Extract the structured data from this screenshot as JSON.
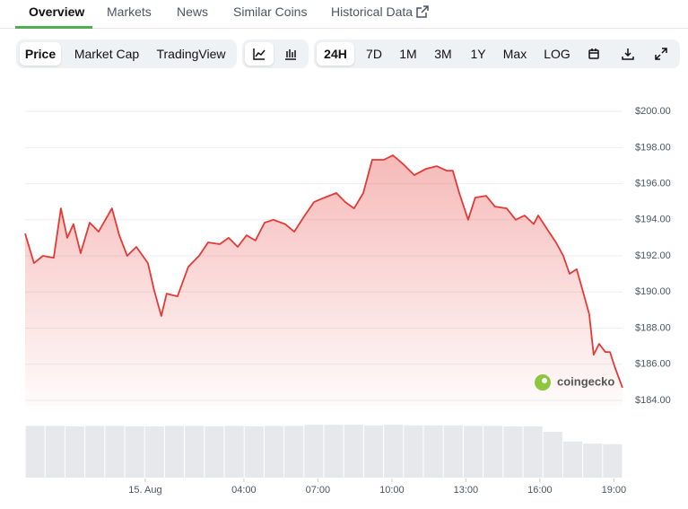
{
  "tabs": [
    "Overview",
    "Markets",
    "News",
    "Similar Coins",
    "Historical Data"
  ],
  "toolbar": {
    "chart_types": [
      "Price",
      "Market Cap",
      "TradingView"
    ],
    "ranges": [
      "24H",
      "7D",
      "1M",
      "3M",
      "1Y",
      "Max",
      "LOG"
    ]
  },
  "watermark": "coingecko",
  "chart_data": {
    "type": "area",
    "color": "#e53935",
    "grid": true,
    "x": [
      -4.87,
      -4.51,
      -4.15,
      -3.71,
      -3.42,
      -3.16,
      -2.91,
      -2.62,
      -2.25,
      -1.89,
      -1.35,
      -1.05,
      -0.73,
      -0.36,
      0.11,
      0.36,
      0.65,
      0.87,
      1.31,
      1.75,
      2.18,
      2.55,
      3.02,
      3.38,
      3.75,
      4.11,
      4.47,
      4.84,
      5.2,
      5.67,
      6.04,
      6.47,
      6.84,
      7.27,
      7.75,
      8.11,
      8.47,
      8.84,
      9.2,
      9.67,
      10.04,
      10.47,
      10.91,
      11.38,
      11.82,
      12.22,
      12.47,
      12.73,
      13.09,
      13.38,
      13.82,
      14.18,
      14.65,
      15.02,
      15.38,
      15.75,
      15.93,
      16.29,
      16.65,
      16.95,
      17.2,
      17.49,
      17.75,
      18.0,
      18.18,
      18.4,
      18.65,
      18.84,
      19.05,
      19.35
    ],
    "values": [
      193.24,
      191.6,
      192.0,
      191.9,
      194.63,
      193.0,
      193.76,
      192.15,
      193.84,
      193.34,
      194.63,
      193.14,
      192.0,
      192.5,
      191.6,
      190.11,
      188.67,
      189.91,
      189.76,
      191.4,
      192.0,
      192.75,
      192.65,
      193.0,
      192.5,
      193.14,
      192.85,
      193.84,
      194.0,
      193.76,
      193.34,
      194.24,
      194.98,
      195.23,
      195.48,
      194.98,
      194.63,
      195.48,
      197.32,
      197.32,
      197.57,
      197.07,
      196.47,
      196.82,
      196.97,
      196.72,
      196.72,
      195.48,
      194.0,
      195.23,
      195.33,
      194.73,
      194.63,
      194.0,
      194.24,
      193.76,
      194.24,
      193.49,
      192.75,
      192.0,
      191.01,
      191.26,
      190.01,
      188.77,
      186.53,
      187.13,
      186.68,
      186.68,
      185.79,
      184.7
    ],
    "xlim": [
      -4.87,
      19.35
    ],
    "xticks": [
      {
        "value": 0,
        "label": "15. Aug"
      },
      {
        "value": 4,
        "label": "04:00"
      },
      {
        "value": 7,
        "label": "07:00"
      },
      {
        "value": 10,
        "label": "10:00"
      },
      {
        "value": 13,
        "label": "13:00"
      },
      {
        "value": 16,
        "label": "16:00"
      },
      {
        "value": 19,
        "label": "19:00"
      }
    ],
    "ylim": [
      183.7,
      201
    ],
    "yticks": [
      {
        "value": 184,
        "label": "$184.00"
      },
      {
        "value": 186,
        "label": "$186.00"
      },
      {
        "value": 188,
        "label": "$188.00"
      },
      {
        "value": 190,
        "label": "$190.00"
      },
      {
        "value": 192,
        "label": "$192.00"
      },
      {
        "value": 194,
        "label": "$194.00"
      },
      {
        "value": 196,
        "label": "$196.00"
      },
      {
        "value": 198,
        "label": "$198.00"
      },
      {
        "value": 200,
        "label": "$200.00"
      }
    ],
    "volume": {
      "color": "#e6e8eb",
      "ylim": [
        0,
        100
      ],
      "values": [
        96,
        96,
        95,
        96,
        96,
        95,
        95,
        96,
        96,
        95,
        96,
        95,
        96,
        96,
        98,
        98,
        98,
        97,
        98,
        97,
        97,
        97,
        96,
        96,
        95,
        95,
        85,
        67,
        63,
        62
      ]
    }
  }
}
